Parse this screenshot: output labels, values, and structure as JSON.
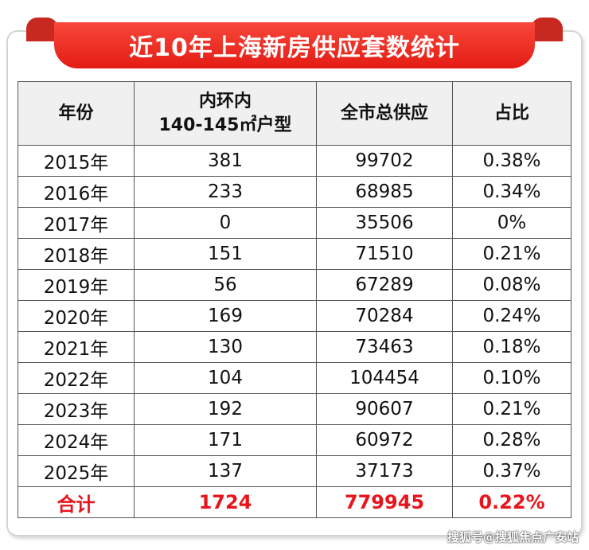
{
  "title": "近10年上海新房供应套数统计",
  "chart_data": {
    "type": "table",
    "title": "近10年上海新房供应套数统计",
    "columns": [
      "年份",
      "内环内\n140-145㎡户型",
      "全市总供应",
      "占比"
    ],
    "rows": [
      [
        "2015年",
        "381",
        "99702",
        "0.38%"
      ],
      [
        "2016年",
        "233",
        "68985",
        "0.34%"
      ],
      [
        "2017年",
        "0",
        "35506",
        "0%"
      ],
      [
        "2018年",
        "151",
        "71510",
        "0.21%"
      ],
      [
        "2019年",
        "56",
        "67289",
        "0.08%"
      ],
      [
        "2020年",
        "169",
        "70284",
        "0.24%"
      ],
      [
        "2021年",
        "130",
        "73463",
        "0.18%"
      ],
      [
        "2022年",
        "104",
        "104454",
        "0.10%"
      ],
      [
        "2023年",
        "192",
        "90607",
        "0.21%"
      ],
      [
        "2024年",
        "171",
        "60972",
        "0.28%"
      ],
      [
        "2025年",
        "137",
        "37173",
        "0.37%"
      ]
    ],
    "total": [
      "合计",
      "1724",
      "779945",
      "0.22%"
    ]
  },
  "header": {
    "col1": "年份",
    "col2_line1": "内环内",
    "col2_line2": "140-145㎡户型",
    "col3": "全市总供应",
    "col4": "占比"
  },
  "colors": {
    "ribbon": "#e41c14",
    "total_text": "#e8141b",
    "header_bg": "#f0f0f0"
  },
  "watermark": "搜狐号@搜狐焦点广安站"
}
